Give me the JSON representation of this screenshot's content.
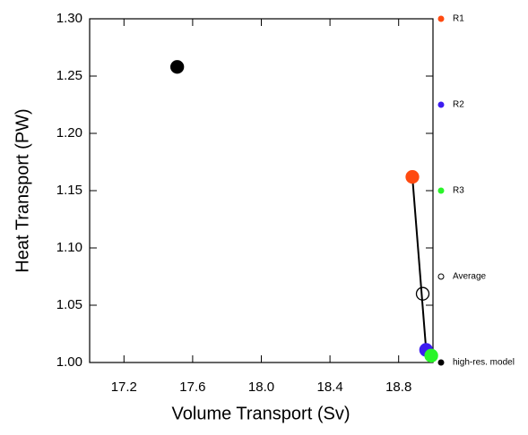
{
  "chart_data": {
    "type": "scatter",
    "xlabel": "Volume Transport (Sv)",
    "ylabel": "Heat Transport (PW)",
    "xlim": [
      17.0,
      19.0
    ],
    "xticks": [
      17.2,
      17.6,
      {
        "value": 18.0,
        "label": "18.0"
      },
      18.4,
      18.8
    ],
    "ylim": [
      1.0,
      1.3
    ],
    "yticks": [
      {
        "value": 1.0,
        "label": "1.00"
      },
      {
        "value": 1.05,
        "label": "1.05"
      },
      {
        "value": 1.1,
        "label": "1.10"
      },
      {
        "value": 1.15,
        "label": "1.15"
      },
      {
        "value": 1.2,
        "label": "1.20"
      },
      {
        "value": 1.25,
        "label": "1.25"
      },
      {
        "value": 1.3,
        "label": "1.30"
      }
    ],
    "connect_series": [
      "R1",
      "R2",
      "R3"
    ],
    "series": [
      {
        "name": "R1",
        "color": "#ff4a10",
        "filled": true,
        "x": [
          18.88
        ],
        "values": [
          1.162
        ]
      },
      {
        "name": "R2",
        "color": "#3d1cf0",
        "filled": true,
        "x": [
          18.96
        ],
        "values": [
          1.011
        ]
      },
      {
        "name": "R3",
        "color": "#2af52a",
        "filled": true,
        "x": [
          18.99
        ],
        "values": [
          1.006
        ]
      },
      {
        "name": "Average",
        "color": "#000000",
        "filled": false,
        "x": [
          18.94
        ],
        "values": [
          1.06
        ]
      },
      {
        "name": "high-res. model",
        "color": "#000000",
        "filled": true,
        "x": [
          17.51
        ],
        "values": [
          1.258
        ]
      }
    ]
  }
}
